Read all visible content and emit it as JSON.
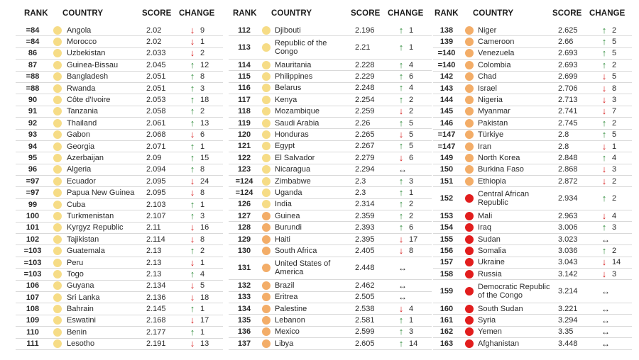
{
  "headers": {
    "rank": "RANK",
    "country": "COUNTRY",
    "score": "SCORE",
    "change": "CHANGE"
  },
  "colors": {
    "yellow": "#f6dc86",
    "orange": "#f3ad68",
    "red": "#e21d1d",
    "up": "#2e8b3a",
    "down": "#d62020"
  },
  "columns": [
    [
      {
        "rank": "=84",
        "country": "Angola",
        "score": "2.02",
        "dir": "down",
        "change": "9",
        "level": "yellow"
      },
      {
        "rank": "=84",
        "country": "Morocco",
        "score": "2.02",
        "dir": "down",
        "change": "1",
        "level": "yellow"
      },
      {
        "rank": "86",
        "country": "Uzbekistan",
        "score": "2.033",
        "dir": "down",
        "change": "2",
        "level": "yellow"
      },
      {
        "rank": "87",
        "country": "Guinea-Bissau",
        "score": "2.045",
        "dir": "up",
        "change": "12",
        "level": "yellow"
      },
      {
        "rank": "=88",
        "country": "Bangladesh",
        "score": "2.051",
        "dir": "up",
        "change": "8",
        "level": "yellow"
      },
      {
        "rank": "=88",
        "country": "Rwanda",
        "score": "2.051",
        "dir": "up",
        "change": "3",
        "level": "yellow"
      },
      {
        "rank": "90",
        "country": "Côte d'Ivoire",
        "score": "2.053",
        "dir": "up",
        "change": "18",
        "level": "yellow"
      },
      {
        "rank": "91",
        "country": "Tanzania",
        "score": "2.058",
        "dir": "up",
        "change": "2",
        "level": "yellow"
      },
      {
        "rank": "92",
        "country": "Thailand",
        "score": "2.061",
        "dir": "up",
        "change": "13",
        "level": "yellow"
      },
      {
        "rank": "93",
        "country": "Gabon",
        "score": "2.068",
        "dir": "down",
        "change": "6",
        "level": "yellow"
      },
      {
        "rank": "94",
        "country": "Georgia",
        "score": "2.071",
        "dir": "up",
        "change": "1",
        "level": "yellow"
      },
      {
        "rank": "95",
        "country": "Azerbaijan",
        "score": "2.09",
        "dir": "up",
        "change": "15",
        "level": "yellow"
      },
      {
        "rank": "96",
        "country": "Algeria",
        "score": "2.094",
        "dir": "up",
        "change": "8",
        "level": "yellow"
      },
      {
        "rank": "=97",
        "country": "Ecuador",
        "score": "2.095",
        "dir": "down",
        "change": "24",
        "level": "yellow"
      },
      {
        "rank": "=97",
        "country": "Papua New Guinea",
        "score": "2.095",
        "dir": "down",
        "change": "8",
        "level": "yellow"
      },
      {
        "rank": "99",
        "country": "Cuba",
        "score": "2.103",
        "dir": "up",
        "change": "1",
        "level": "yellow"
      },
      {
        "rank": "100",
        "country": "Turkmenistan",
        "score": "2.107",
        "dir": "up",
        "change": "3",
        "level": "yellow"
      },
      {
        "rank": "101",
        "country": "Kyrgyz Republic",
        "score": "2.11",
        "dir": "down",
        "change": "16",
        "level": "yellow"
      },
      {
        "rank": "102",
        "country": "Tajikistan",
        "score": "2.114",
        "dir": "down",
        "change": "8",
        "level": "yellow"
      },
      {
        "rank": "=103",
        "country": "Guatemala",
        "score": "2.13",
        "dir": "up",
        "change": "2",
        "level": "yellow"
      },
      {
        "rank": "=103",
        "country": "Peru",
        "score": "2.13",
        "dir": "down",
        "change": "1",
        "level": "yellow"
      },
      {
        "rank": "=103",
        "country": "Togo",
        "score": "2.13",
        "dir": "up",
        "change": "4",
        "level": "yellow"
      },
      {
        "rank": "106",
        "country": "Guyana",
        "score": "2.134",
        "dir": "down",
        "change": "5",
        "level": "yellow"
      },
      {
        "rank": "107",
        "country": "Sri Lanka",
        "score": "2.136",
        "dir": "down",
        "change": "18",
        "level": "yellow"
      },
      {
        "rank": "108",
        "country": "Bahrain",
        "score": "2.145",
        "dir": "up",
        "change": "1",
        "level": "yellow"
      },
      {
        "rank": "109",
        "country": "Eswatini",
        "score": "2.168",
        "dir": "down",
        "change": "17",
        "level": "yellow"
      },
      {
        "rank": "110",
        "country": "Benin",
        "score": "2.177",
        "dir": "up",
        "change": "1",
        "level": "yellow"
      },
      {
        "rank": "111",
        "country": "Lesotho",
        "score": "2.191",
        "dir": "down",
        "change": "13",
        "level": "yellow"
      }
    ],
    [
      {
        "rank": "112",
        "country": "Djibouti",
        "score": "2.196",
        "dir": "up",
        "change": "1",
        "level": "yellow"
      },
      {
        "rank": "113",
        "country": "Republic of the Congo",
        "score": "2.21",
        "dir": "up",
        "change": "1",
        "level": "yellow",
        "tall": true
      },
      {
        "rank": "114",
        "country": "Mauritania",
        "score": "2.228",
        "dir": "up",
        "change": "4",
        "level": "yellow"
      },
      {
        "rank": "115",
        "country": "Philippines",
        "score": "2.229",
        "dir": "up",
        "change": "6",
        "level": "yellow"
      },
      {
        "rank": "116",
        "country": "Belarus",
        "score": "2.248",
        "dir": "up",
        "change": "4",
        "level": "yellow"
      },
      {
        "rank": "117",
        "country": "Kenya",
        "score": "2.254",
        "dir": "up",
        "change": "2",
        "level": "yellow"
      },
      {
        "rank": "118",
        "country": "Mozambique",
        "score": "2.259",
        "dir": "down",
        "change": "2",
        "level": "yellow"
      },
      {
        "rank": "119",
        "country": "Saudi Arabia",
        "score": "2.26",
        "dir": "up",
        "change": "5",
        "level": "yellow"
      },
      {
        "rank": "120",
        "country": "Honduras",
        "score": "2.265",
        "dir": "down",
        "change": "5",
        "level": "yellow"
      },
      {
        "rank": "121",
        "country": "Egypt",
        "score": "2.267",
        "dir": "up",
        "change": "5",
        "level": "yellow"
      },
      {
        "rank": "122",
        "country": "El Salvador",
        "score": "2.279",
        "dir": "down",
        "change": "6",
        "level": "yellow"
      },
      {
        "rank": "123",
        "country": "Nicaragua",
        "score": "2.294",
        "dir": "same",
        "change": "",
        "level": "yellow"
      },
      {
        "rank": "=124",
        "country": "Zimbabwe",
        "score": "2.3",
        "dir": "up",
        "change": "3",
        "level": "yellow"
      },
      {
        "rank": "=124",
        "country": "Uganda",
        "score": "2.3",
        "dir": "up",
        "change": "1",
        "level": "yellow"
      },
      {
        "rank": "126",
        "country": "India",
        "score": "2.314",
        "dir": "up",
        "change": "2",
        "level": "yellow"
      },
      {
        "rank": "127",
        "country": "Guinea",
        "score": "2.359",
        "dir": "up",
        "change": "2",
        "level": "orange"
      },
      {
        "rank": "128",
        "country": "Burundi",
        "score": "2.393",
        "dir": "up",
        "change": "6",
        "level": "orange"
      },
      {
        "rank": "129",
        "country": "Haiti",
        "score": "2.395",
        "dir": "down",
        "change": "17",
        "level": "orange"
      },
      {
        "rank": "130",
        "country": "South Africa",
        "score": "2.405",
        "dir": "down",
        "change": "8",
        "level": "orange"
      },
      {
        "rank": "131",
        "country": "United States of America",
        "score": "2.448",
        "dir": "same",
        "change": "",
        "level": "orange",
        "tall": true
      },
      {
        "rank": "132",
        "country": "Brazil",
        "score": "2.462",
        "dir": "same",
        "change": "",
        "level": "orange"
      },
      {
        "rank": "133",
        "country": "Eritrea",
        "score": "2.505",
        "dir": "same",
        "change": "",
        "level": "orange"
      },
      {
        "rank": "134",
        "country": "Palestine",
        "score": "2.538",
        "dir": "down",
        "change": "4",
        "level": "orange"
      },
      {
        "rank": "135",
        "country": "Lebanon",
        "score": "2.581",
        "dir": "up",
        "change": "1",
        "level": "orange"
      },
      {
        "rank": "136",
        "country": "Mexico",
        "score": "2.599",
        "dir": "up",
        "change": "3",
        "level": "orange"
      },
      {
        "rank": "137",
        "country": "Libya",
        "score": "2.605",
        "dir": "up",
        "change": "14",
        "level": "orange"
      }
    ],
    [
      {
        "rank": "138",
        "country": "Niger",
        "score": "2.625",
        "dir": "up",
        "change": "2",
        "level": "orange"
      },
      {
        "rank": "139",
        "country": "Cameroon",
        "score": "2.66",
        "dir": "up",
        "change": "5",
        "level": "orange"
      },
      {
        "rank": "=140",
        "country": "Venezuela",
        "score": "2.693",
        "dir": "up",
        "change": "5",
        "level": "orange"
      },
      {
        "rank": "=140",
        "country": "Colombia",
        "score": "2.693",
        "dir": "up",
        "change": "2",
        "level": "orange"
      },
      {
        "rank": "142",
        "country": "Chad",
        "score": "2.699",
        "dir": "down",
        "change": "5",
        "level": "orange"
      },
      {
        "rank": "143",
        "country": "Israel",
        "score": "2.706",
        "dir": "down",
        "change": "8",
        "level": "orange"
      },
      {
        "rank": "144",
        "country": "Nigeria",
        "score": "2.713",
        "dir": "down",
        "change": "3",
        "level": "orange"
      },
      {
        "rank": "145",
        "country": "Myanmar",
        "score": "2.741",
        "dir": "down",
        "change": "7",
        "level": "orange"
      },
      {
        "rank": "146",
        "country": "Pakistan",
        "score": "2.745",
        "dir": "up",
        "change": "2",
        "level": "orange"
      },
      {
        "rank": "=147",
        "country": "Türkiye",
        "score": "2.8",
        "dir": "up",
        "change": "5",
        "level": "orange"
      },
      {
        "rank": "=147",
        "country": "Iran",
        "score": "2.8",
        "dir": "down",
        "change": "1",
        "level": "orange"
      },
      {
        "rank": "149",
        "country": "North Korea",
        "score": "2.848",
        "dir": "up",
        "change": "4",
        "level": "orange"
      },
      {
        "rank": "150",
        "country": "Burkina Faso",
        "score": "2.868",
        "dir": "down",
        "change": "3",
        "level": "orange"
      },
      {
        "rank": "151",
        "country": "Ethiopia",
        "score": "2.872",
        "dir": "down",
        "change": "2",
        "level": "orange"
      },
      {
        "rank": "152",
        "country": "Central African Republic",
        "score": "2.934",
        "dir": "up",
        "change": "2",
        "level": "red",
        "tall": true
      },
      {
        "rank": "153",
        "country": "Mali",
        "score": "2.963",
        "dir": "down",
        "change": "4",
        "level": "red"
      },
      {
        "rank": "154",
        "country": "Iraq",
        "score": "3.006",
        "dir": "up",
        "change": "3",
        "level": "red"
      },
      {
        "rank": "155",
        "country": "Sudan",
        "score": "3.023",
        "dir": "same",
        "change": "",
        "level": "red"
      },
      {
        "rank": "156",
        "country": "Somalia",
        "score": "3.036",
        "dir": "up",
        "change": "2",
        "level": "red"
      },
      {
        "rank": "157",
        "country": "Ukraine",
        "score": "3.043",
        "dir": "down",
        "change": "14",
        "level": "red"
      },
      {
        "rank": "158",
        "country": "Russia",
        "score": "3.142",
        "dir": "down",
        "change": "3",
        "level": "red"
      },
      {
        "rank": "159",
        "country": "Democratic Republic of the Congo",
        "score": "3.214",
        "dir": "same",
        "change": "",
        "level": "red",
        "tall": true
      },
      {
        "rank": "160",
        "country": "South Sudan",
        "score": "3.221",
        "dir": "same",
        "change": "",
        "level": "red"
      },
      {
        "rank": "161",
        "country": "Syria",
        "score": "3.294",
        "dir": "same",
        "change": "",
        "level": "red"
      },
      {
        "rank": "162",
        "country": "Yemen",
        "score": "3.35",
        "dir": "same",
        "change": "",
        "level": "red"
      },
      {
        "rank": "163",
        "country": "Afghanistan",
        "score": "3.448",
        "dir": "same",
        "change": "",
        "level": "red"
      }
    ]
  ]
}
